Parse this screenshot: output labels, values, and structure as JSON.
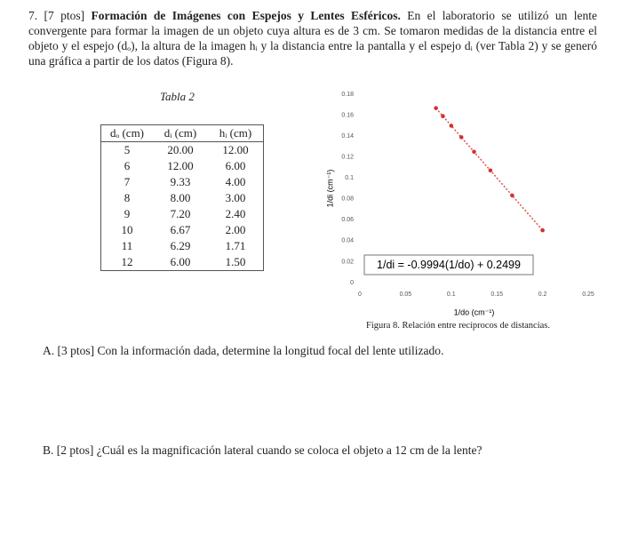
{
  "question": {
    "number": "7.",
    "points": "[7 ptos]",
    "title": "Formación de Imágenes con Espejos y Lentes Esféricos.",
    "body": "En el laboratorio se utilizó un lente convergente para formar la imagen de un objeto cuya altura es de 3 cm. Se tomaron medidas de la distancia entre el objeto y el espejo (dₒ), la altura de la imagen hᵢ y la distancia entre la pantalla y el espejo dᵢ (ver Tabla 2) y se generó una gráfica a partir de los datos (Figura 8)."
  },
  "table": {
    "caption": "Tabla 2",
    "headers": [
      "dₒ (cm)",
      "dᵢ (cm)",
      "hᵢ (cm)"
    ],
    "rows": [
      [
        "5",
        "20.00",
        "12.00"
      ],
      [
        "6",
        "12.00",
        "6.00"
      ],
      [
        "7",
        "9.33",
        "4.00"
      ],
      [
        "8",
        "8.00",
        "3.00"
      ],
      [
        "9",
        "7.20",
        "2.40"
      ],
      [
        "10",
        "6.67",
        "2.00"
      ],
      [
        "11",
        "6.29",
        "1.71"
      ],
      [
        "12",
        "6.00",
        "1.50"
      ]
    ]
  },
  "chart_data": {
    "type": "scatter",
    "x_label": "1/do (cm⁻¹)",
    "y_label": "1/di (cm⁻¹)",
    "x": [
      0.2,
      0.1667,
      0.1429,
      0.125,
      0.1111,
      0.1,
      0.0909,
      0.0833
    ],
    "values": [
      0.05,
      0.0833,
      0.1072,
      0.125,
      0.1389,
      0.1499,
      0.159,
      0.1667
    ],
    "color": "#d62f2f",
    "xlim": [
      0,
      0.25
    ],
    "xticks": [
      0,
      0.05,
      0.1,
      0.15,
      0.2,
      0.25
    ],
    "ylim": [
      0,
      0.18
    ],
    "yticks": [
      0,
      0.02,
      0.04,
      0.06,
      0.08,
      0.1,
      0.12,
      0.14,
      0.16,
      0.18
    ],
    "grid": false,
    "trendline": {
      "slope": -0.9994,
      "intercept": 0.2499,
      "label": "1/di = -0.9994(1/do) + 0.2499",
      "color": "#e05050"
    }
  },
  "figure_caption": "Figura 8. Relación entre recíprocos de distancias.",
  "parts": [
    {
      "label": "A.",
      "points": "[3 ptos]",
      "text": "Con la información dada, determine la longitud focal del lente utilizado."
    },
    {
      "label": "B.",
      "points": "[2 ptos]",
      "text": "¿Cuál es la magnificación lateral cuando se coloca el objeto a 12 cm de la lente?"
    }
  ]
}
